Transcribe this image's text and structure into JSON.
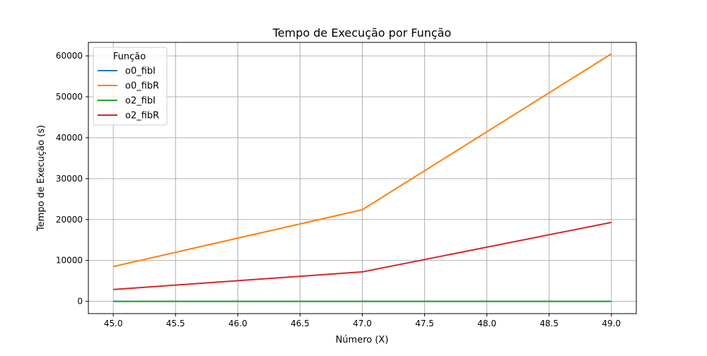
{
  "chart_data": {
    "type": "line",
    "title": "Tempo de Execução por Função",
    "xlabel": "Número (X)",
    "ylabel": "Tempo de Execução (s)",
    "xlim": [
      44.8,
      49.2
    ],
    "ylim": [
      -3000,
      63300
    ],
    "xticks": [
      45.0,
      45.5,
      46.0,
      46.5,
      47.0,
      47.5,
      48.0,
      48.5,
      49.0
    ],
    "xtick_labels": [
      "45.0",
      "45.5",
      "46.0",
      "46.5",
      "47.0",
      "47.5",
      "48.0",
      "48.5",
      "49.0"
    ],
    "yticks": [
      0,
      10000,
      20000,
      30000,
      40000,
      50000,
      60000
    ],
    "ytick_labels": [
      "0",
      "10000",
      "20000",
      "30000",
      "40000",
      "50000",
      "60000"
    ],
    "grid": true,
    "legend": {
      "title": "Função",
      "placement": "top-left"
    },
    "x": [
      45,
      47,
      49
    ],
    "series": [
      {
        "name": "o0_fibI",
        "color": "#1f77b4",
        "values": [
          0,
          0,
          0
        ]
      },
      {
        "name": "o0_fibR",
        "color": "#ff7f0e",
        "values": [
          8500,
          22400,
          60500
        ]
      },
      {
        "name": "o2_fibI",
        "color": "#2ca02c",
        "values": [
          0,
          0,
          0
        ]
      },
      {
        "name": "o2_fibR",
        "color": "#d62728",
        "values": [
          2900,
          7200,
          19300
        ]
      }
    ]
  }
}
